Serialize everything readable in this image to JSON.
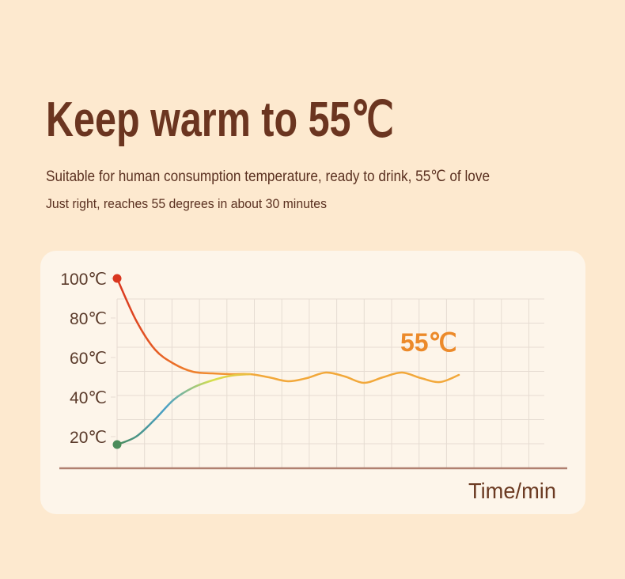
{
  "header": {
    "title": "Keep warm to 55℃",
    "subtitle": "Suitable for human consumption temperature, ready to drink, 55℃ of love",
    "note": "Just right, reaches 55 degrees in about 30 minutes"
  },
  "chart_data": {
    "type": "line",
    "categories": [
      null,
      null,
      null,
      null,
      null,
      null,
      null,
      null,
      null,
      null,
      null,
      null,
      null,
      null,
      null,
      null,
      null,
      null,
      null
    ],
    "series": [
      {
        "colors": [
          "#d9361f",
          "#ee7a2a",
          "#f2a83a"
        ],
        "values": [
          100,
          78.8,
          64,
          56.8,
          52.8,
          52,
          51.6,
          51.6,
          50,
          48,
          49.6,
          52.4,
          50.4,
          47.2,
          50,
          52.4,
          49.6,
          47.6,
          51.2
        ]
      },
      {
        "colors": [
          "#4a8c5a",
          "#4aa0c8",
          "#d8e04a",
          "#f2b040"
        ],
        "values": [
          16,
          20,
          28.8,
          38.8,
          44.8,
          48.4,
          50.8,
          51.6,
          null,
          null,
          null,
          null,
          null,
          null,
          null,
          null,
          null,
          null,
          null
        ]
      }
    ],
    "ylim": [
      4,
      104
    ],
    "yticks": [
      {
        "value": 20,
        "label": "20℃"
      },
      {
        "value": 40,
        "label": "40℃"
      },
      {
        "value": 60,
        "label": "60℃"
      },
      {
        "value": 80,
        "label": "80℃"
      },
      {
        "value": 100,
        "label": "100℃"
      }
    ],
    "annotation": "55℃",
    "xlabel": "Time/min",
    "grid": true
  }
}
